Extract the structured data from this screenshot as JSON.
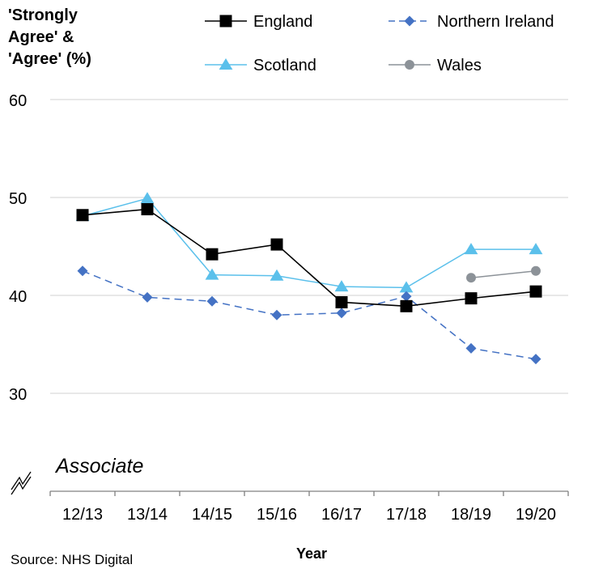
{
  "chart_data": {
    "type": "line",
    "title": "",
    "ylabel_lines": [
      "'Strongly",
      "Agree' &",
      "'Agree' (%)"
    ],
    "xlabel": "Year",
    "categories": [
      "12/13",
      "13/14",
      "14/15",
      "15/16",
      "16/17",
      "17/18",
      "18/19",
      "19/20"
    ],
    "ylim": [
      30,
      60
    ],
    "yticks": [
      30,
      40,
      50,
      60
    ],
    "grid": true,
    "legend_position": "top",
    "annotation": "Associate",
    "source": "Source: NHS Digital",
    "series": [
      {
        "name": "England",
        "color": "#000000",
        "marker": "square",
        "dash": false,
        "values": [
          48.2,
          48.8,
          44.2,
          45.2,
          39.3,
          38.9,
          39.7,
          40.4
        ]
      },
      {
        "name": "Northern Ireland",
        "color": "#4472C4",
        "marker": "diamond",
        "dash": true,
        "values": [
          42.5,
          39.8,
          39.4,
          38.0,
          38.2,
          39.9,
          34.6,
          33.5
        ]
      },
      {
        "name": "Scotland",
        "color": "#5BC0EB",
        "marker": "triangle",
        "dash": false,
        "values": [
          48.1,
          49.9,
          42.1,
          42.0,
          40.9,
          40.8,
          44.7,
          44.7
        ]
      },
      {
        "name": "Wales",
        "color": "#8C9298",
        "marker": "circle",
        "dash": false,
        "values": [
          null,
          null,
          null,
          null,
          null,
          null,
          41.8,
          42.5
        ]
      }
    ]
  }
}
